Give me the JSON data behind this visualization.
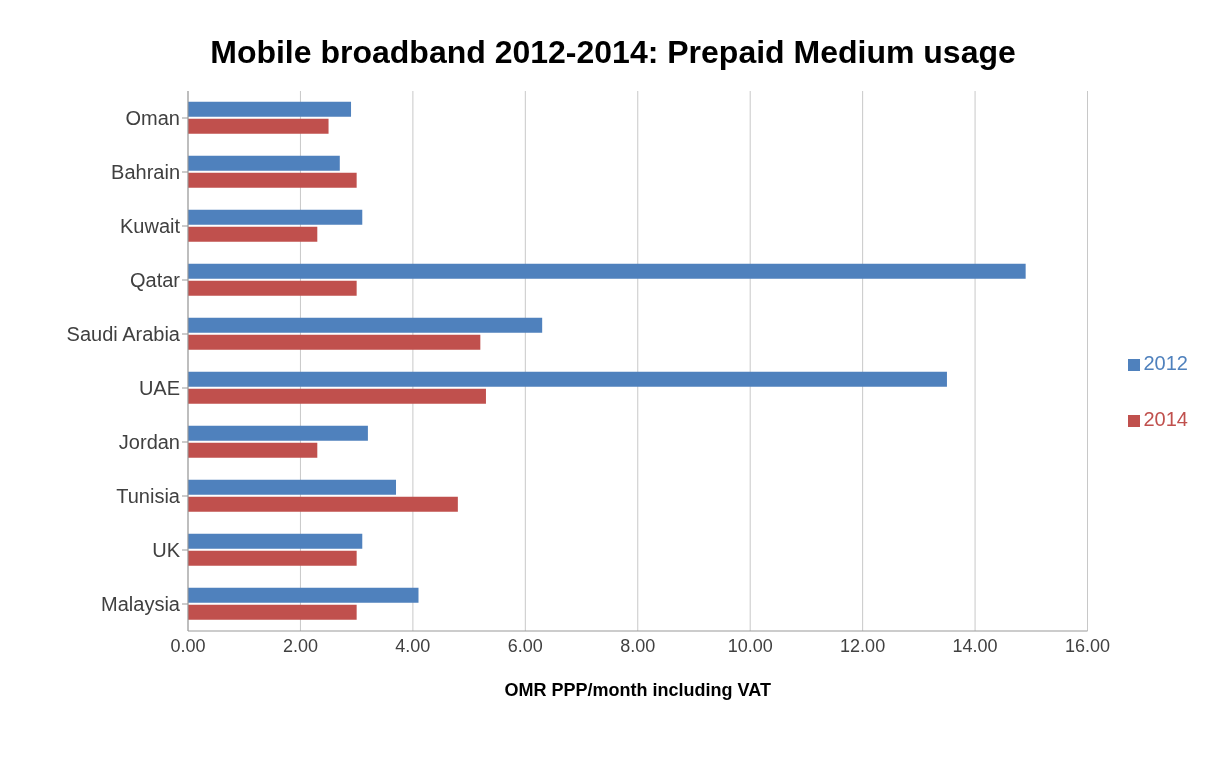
{
  "chart_data": {
    "type": "bar",
    "orientation": "horizontal",
    "title": "Mobile broadband 2012-2014: Prepaid Medium usage",
    "xlabel": "OMR PPP/month including VAT",
    "categories": [
      "Oman",
      "Bahrain",
      "Kuwait",
      "Qatar",
      "Saudi Arabia",
      "UAE",
      "Jordan",
      "Tunisia",
      "UK",
      "Malaysia"
    ],
    "series": [
      {
        "name": "2012",
        "color": "#4f81bd",
        "values": [
          2.9,
          2.7,
          3.1,
          14.9,
          6.3,
          13.5,
          3.2,
          3.7,
          3.1,
          4.1
        ]
      },
      {
        "name": "2014",
        "color": "#c0504d",
        "values": [
          2.5,
          3.0,
          2.3,
          3.0,
          5.2,
          5.3,
          2.3,
          4.8,
          3.0,
          3.0
        ]
      }
    ],
    "xlim": [
      0,
      16
    ],
    "xticks": [
      {
        "value": 0,
        "label": "0.00"
      },
      {
        "value": 2,
        "label": "2.00"
      },
      {
        "value": 4,
        "label": "4.00"
      },
      {
        "value": 6,
        "label": "6.00"
      },
      {
        "value": 8,
        "label": "8.00"
      },
      {
        "value": 10,
        "label": "10.00"
      },
      {
        "value": 12,
        "label": "12.00"
      },
      {
        "value": 14,
        "label": "14.00"
      },
      {
        "value": 16,
        "label": "16.00"
      }
    ],
    "grid": "x",
    "legend": "right"
  }
}
